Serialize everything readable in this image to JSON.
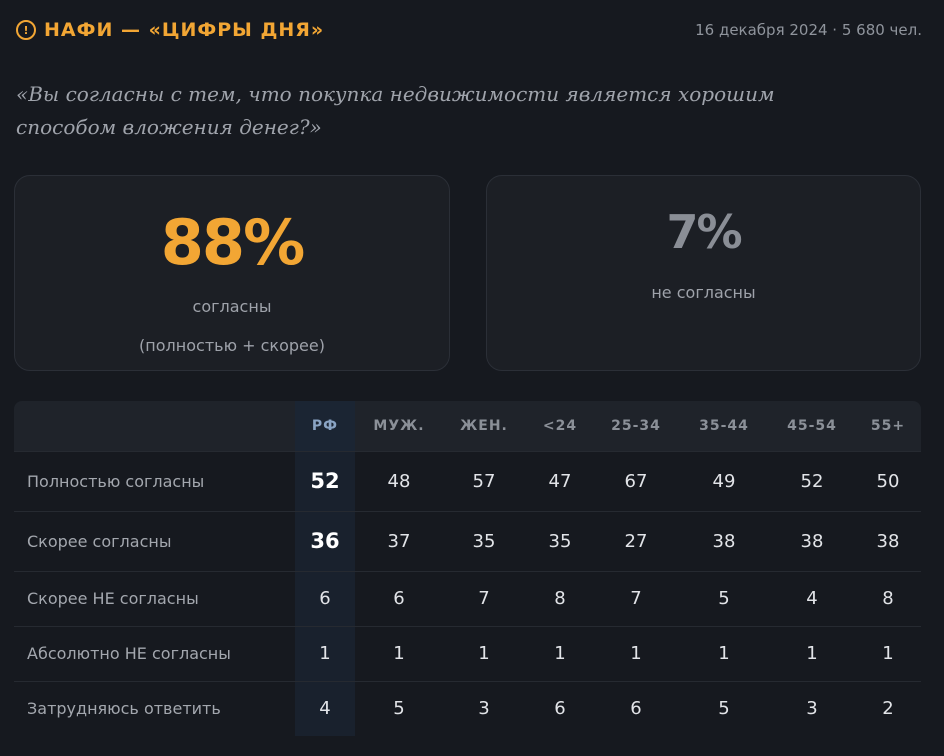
{
  "header": {
    "icon_glyph": "!",
    "brand": "НАФИ — «ЦИФРЫ ДНЯ»",
    "meta": "16 декабря 2024 · 5 680 чел."
  },
  "question": "«Вы согласны с тем, что покупка недвижимости является хорошим способом вложения денег?»",
  "cards": {
    "agree": {
      "value": "88%",
      "label1": "согласны",
      "label2": "(полностью + скорее)"
    },
    "disagree": {
      "value": "7%",
      "label1": "не согласны"
    }
  },
  "table": {
    "columns": [
      "РФ",
      "МУЖ.",
      "ЖЕН.",
      "<24",
      "25-34",
      "35-44",
      "45-54",
      "55+"
    ],
    "rows": [
      {
        "label": "Полностью согласны",
        "values": [
          "52",
          "48",
          "57",
          "47",
          "67",
          "49",
          "52",
          "50"
        ]
      },
      {
        "label": "Скорее согласны",
        "values": [
          "36",
          "37",
          "35",
          "35",
          "27",
          "38",
          "38",
          "38"
        ]
      },
      {
        "label": "Скорее НЕ согласны",
        "values": [
          "6",
          "6",
          "7",
          "8",
          "7",
          "5",
          "4",
          "8"
        ]
      },
      {
        "label": "Абсолютно НЕ согласны",
        "values": [
          "1",
          "1",
          "1",
          "1",
          "1",
          "1",
          "1",
          "1"
        ]
      },
      {
        "label": "Затрудняюсь ответить",
        "values": [
          "4",
          "5",
          "3",
          "6",
          "6",
          "5",
          "3",
          "2"
        ]
      }
    ]
  },
  "colors": {
    "accent": "#f2a634",
    "background": "#16191f",
    "muted": "#8a8e96"
  }
}
